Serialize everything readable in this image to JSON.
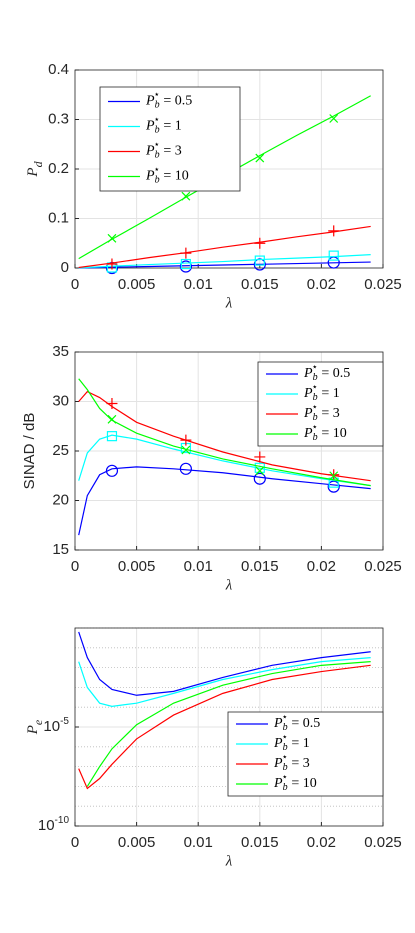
{
  "chart_data": [
    {
      "type": "line",
      "xlabel": "λ",
      "ylabel": "Pd",
      "x": [
        0.0003,
        0.003,
        0.006,
        0.009,
        0.012,
        0.015,
        0.018,
        0.021,
        0.024
      ],
      "marker_x": [
        0.003,
        0.009,
        0.015,
        0.021
      ],
      "series": [
        {
          "name": "Pb⋆ = 0.5",
          "color": "#0000ff",
          "marker": "o",
          "values": [
            0,
            0.0015,
            0.003,
            0.0045,
            0.006,
            0.0075,
            0.009,
            0.0105,
            0.012
          ],
          "marker_values": [
            0.0,
            0.003,
            0.007,
            0.011
          ]
        },
        {
          "name": "Pb⋆ = 1",
          "color": "#00ffff",
          "marker": "s",
          "values": [
            0.0003,
            0.0035,
            0.007,
            0.01,
            0.013,
            0.017,
            0.02,
            0.023,
            0.027
          ],
          "marker_values": [
            0.001,
            0.008,
            0.015,
            0.025
          ]
        },
        {
          "name": "Pb⋆ = 3",
          "color": "#ff0000",
          "marker": "+",
          "values": [
            0.001,
            0.01,
            0.021,
            0.031,
            0.042,
            0.052,
            0.063,
            0.073,
            0.084
          ],
          "marker_values": [
            0.008,
            0.03,
            0.05,
            0.075
          ]
        },
        {
          "name": "Pb⋆ = 10",
          "color": "#00ff00",
          "marker": "x",
          "values": [
            0.019,
            0.058,
            0.1,
            0.143,
            0.185,
            0.227,
            0.268,
            0.307,
            0.348
          ],
          "marker_values": [
            0.06,
            0.145,
            0.222,
            0.302
          ]
        }
      ],
      "xlim": [
        0,
        0.025
      ],
      "xticks": [
        0,
        0.005,
        0.01,
        0.015,
        0.02,
        0.025
      ],
      "ylim": [
        0,
        0.4
      ],
      "yticks": [
        0,
        0.1,
        0.2,
        0.3,
        0.4
      ],
      "grid": true,
      "legend": "upper left"
    },
    {
      "type": "line",
      "xlabel": "λ",
      "ylabel": "SINAD / dB",
      "x": [
        0.0003,
        0.001,
        0.002,
        0.003,
        0.005,
        0.008,
        0.012,
        0.016,
        0.02,
        0.024
      ],
      "marker_x": [
        0.003,
        0.009,
        0.015,
        0.021
      ],
      "series": [
        {
          "name": "Pb⋆ = 0.5",
          "color": "#0000ff",
          "marker": "o",
          "values": [
            16.5,
            20.5,
            22.6,
            23.2,
            23.4,
            23.2,
            22.8,
            22.2,
            21.7,
            21.2
          ],
          "marker_values": [
            23,
            23.2,
            22.2,
            21.4
          ]
        },
        {
          "name": "Pb⋆ = 1",
          "color": "#00ffff",
          "marker": "s",
          "values": [
            22,
            24.8,
            26.2,
            26.6,
            26.2,
            25.2,
            24,
            23,
            22.2,
            21.5
          ],
          "marker_values": [
            26.5,
            25.3,
            23.3,
            21.8
          ]
        },
        {
          "name": "Pb⋆ = 3",
          "color": "#ff0000",
          "marker": "+",
          "values": [
            30,
            31,
            30.4,
            29.5,
            27.9,
            26.5,
            24.9,
            23.6,
            22.7,
            22
          ],
          "marker_values": [
            29.8,
            26.1,
            24.4,
            22.6
          ]
        },
        {
          "name": "Pb⋆ = 10",
          "color": "#00ff00",
          "marker": "x",
          "values": [
            32.3,
            31.2,
            29.3,
            28.1,
            26.8,
            25.5,
            24.2,
            23.2,
            22.3,
            21.5
          ],
          "marker_values": [
            28.2,
            25.1,
            23.0,
            22.5
          ]
        }
      ],
      "xlim": [
        0,
        0.025
      ],
      "xticks": [
        0,
        0.005,
        0.01,
        0.015,
        0.02,
        0.025
      ],
      "ylim": [
        15,
        35
      ],
      "yticks": [
        15,
        20,
        25,
        30,
        35
      ],
      "grid": true,
      "legend": "upper right"
    },
    {
      "type": "line",
      "xlabel": "λ",
      "ylabel": "Pe",
      "x": [
        0.0003,
        0.001,
        0.002,
        0.003,
        0.005,
        0.008,
        0.012,
        0.016,
        0.02,
        0.024
      ],
      "series": [
        {
          "name": "Pb⋆ = 0.5",
          "color": "#0000ff",
          "values": [
            0.63,
            0.032,
            0.0025,
            0.00079,
            0.0004,
            0.00063,
            0.0032,
            0.013,
            0.032,
            0.063
          ]
        },
        {
          "name": "Pb⋆ = 1",
          "color": "#00ffff",
          "values": [
            0.02,
            0.001,
            0.00016,
            0.00011,
            0.00016,
            0.0005,
            0.0025,
            0.0079,
            0.02,
            0.032
          ]
        },
        {
          "name": "Pb⋆ = 3",
          "color": "#ff0000",
          "values": [
            7.9e-08,
            7.9e-09,
            2.5e-08,
            1.3e-07,
            2.5e-06,
            4e-05,
            0.0005,
            0.0025,
            0.0063,
            0.013
          ]
        },
        {
          "name": "Pb⋆ = 10",
          "color": "#00ff00",
          "values": [
            null,
            1e-08,
            1e-07,
            7.9e-07,
            1.3e-05,
            0.00016,
            0.0013,
            0.005,
            0.013,
            0.02
          ]
        }
      ],
      "xlim": [
        0,
        0.025
      ],
      "xticks": [
        0,
        0.005,
        0.01,
        0.015,
        0.02,
        0.025
      ],
      "ylim": [
        1e-10,
        1
      ],
      "yticks": [
        {
          "value": 1e-10,
          "label": "10-10"
        },
        {
          "value": 1e-05,
          "label": "10-5"
        }
      ],
      "yscale": "log",
      "grid": true,
      "legend": "lower right"
    }
  ]
}
